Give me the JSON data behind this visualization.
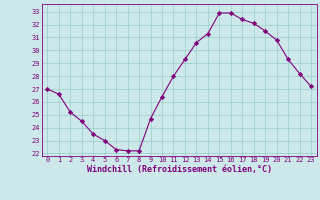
{
  "x": [
    0,
    1,
    2,
    3,
    4,
    5,
    6,
    7,
    8,
    9,
    10,
    11,
    12,
    13,
    14,
    15,
    16,
    17,
    18,
    19,
    20,
    21,
    22,
    23
  ],
  "y": [
    27.0,
    26.6,
    25.2,
    24.5,
    23.5,
    23.0,
    22.3,
    22.2,
    22.2,
    24.7,
    26.4,
    28.0,
    29.3,
    30.6,
    31.3,
    32.9,
    32.9,
    32.4,
    32.1,
    31.5,
    30.8,
    29.3,
    28.2,
    27.2
  ],
  "line_color": "#800080",
  "marker": "D",
  "marker_size": 2.2,
  "bg_color": "#cce8e8",
  "grid_color": "#99cccc",
  "xlabel": "Windchill (Refroidissement éolien,°C)",
  "xlabel_color": "#800080",
  "tick_color": "#800080",
  "ylabel_ticks": [
    22,
    23,
    24,
    25,
    26,
    27,
    28,
    29,
    30,
    31,
    32,
    33
  ],
  "xlim": [
    -0.5,
    23.5
  ],
  "ylim": [
    21.8,
    33.6
  ],
  "xticks": [
    0,
    1,
    2,
    3,
    4,
    5,
    6,
    7,
    8,
    9,
    10,
    11,
    12,
    13,
    14,
    15,
    16,
    17,
    18,
    19,
    20,
    21,
    22,
    23
  ],
  "tick_fontsize": 5.0,
  "xlabel_fontsize": 6.0
}
